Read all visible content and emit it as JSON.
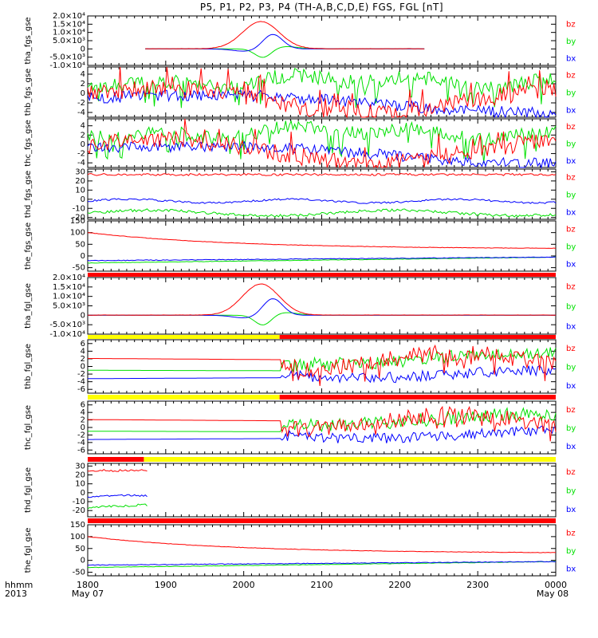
{
  "title": "P5, P1, P2, P3, P4 (TH-A,B,C,D,E) FGS, FGL [nT]",
  "footer": {
    "row1_label": "hhmm",
    "row2_label": "2013",
    "start_date": "May 07",
    "end_date": "May 08"
  },
  "colors": {
    "bx": "#0000ff",
    "by": "#00e000",
    "bz": "#ff0000",
    "bar_red": "#ff0000",
    "bar_yellow": "#ffff00",
    "bar_black": "#000000"
  },
  "chart_data": {
    "type": "line",
    "x_ticks": [
      "1800",
      "1900",
      "2000",
      "2100",
      "2200",
      "2300",
      "0000"
    ],
    "x_range": [
      "1800",
      "0000"
    ],
    "legend": [
      "bz",
      "by",
      "bx"
    ],
    "panels": [
      {
        "id": "tha_fgs_gse",
        "ylabel": "tha_fgs_gse",
        "ylim": [
          -10000,
          20000
        ],
        "yticks": [
          {
            "v": 20000,
            "t": "2.0×10⁴"
          },
          {
            "v": 15000,
            "t": "1.5×10⁴"
          },
          {
            "v": 10000,
            "t": "1.0×10⁴"
          },
          {
            "v": 5000,
            "t": "5.0×10³"
          },
          {
            "v": 0,
            "t": "0"
          },
          {
            "v": -5000,
            "t": "-5.0×10³"
          },
          {
            "v": -10000,
            "t": "-1.0×10⁴"
          }
        ],
        "coverage": [
          [
            0.12,
            0.72
          ]
        ],
        "shape": "spike"
      },
      {
        "id": "thb_fgs_gse",
        "ylabel": "thb_fgs_gse",
        "ylim": [
          -5,
          5.5
        ],
        "yticks": [
          {
            "v": 4,
            "t": "4"
          },
          {
            "v": 2,
            "t": "2"
          },
          {
            "v": 0,
            "t": "0"
          },
          {
            "v": -2,
            "t": "-2"
          },
          {
            "v": -4,
            "t": "-4"
          }
        ],
        "coverage": [
          [
            0,
            1
          ]
        ],
        "shape": "noisy"
      },
      {
        "id": "thc_fgs_gse",
        "ylabel": "thc_fgs_gse",
        "ylim": [
          -5,
          5.5
        ],
        "yticks": [
          {
            "v": 4,
            "t": "4"
          },
          {
            "v": 2,
            "t": "2"
          },
          {
            "v": 0,
            "t": "0"
          },
          {
            "v": -2,
            "t": "-2"
          },
          {
            "v": -4,
            "t": "-4"
          }
        ],
        "coverage": [
          [
            0,
            1
          ]
        ],
        "shape": "noisy"
      },
      {
        "id": "thd_fgs_gse",
        "ylabel": "thd_fgs_gse",
        "ylim": [
          -22,
          33
        ],
        "yticks": [
          {
            "v": 30,
            "t": "30"
          },
          {
            "v": 20,
            "t": "20"
          },
          {
            "v": 10,
            "t": "10"
          },
          {
            "v": 0,
            "t": "0"
          },
          {
            "v": -10,
            "t": "-10"
          },
          {
            "v": -20,
            "t": "-20"
          }
        ],
        "coverage": [
          [
            0,
            1
          ]
        ],
        "shape": "flat",
        "levels": {
          "bz": 27,
          "by": -15,
          "bx": -2
        }
      },
      {
        "id": "the_fgs_gse",
        "ylabel": "the_fgs_gse",
        "ylim": [
          -65,
          150
        ],
        "yticks": [
          {
            "v": 150,
            "t": "150"
          },
          {
            "v": 100,
            "t": "100"
          },
          {
            "v": 50,
            "t": "50"
          },
          {
            "v": 0,
            "t": "0"
          },
          {
            "v": -50,
            "t": "-50"
          }
        ],
        "coverage": [
          [
            0,
            1
          ]
        ],
        "shape": "decay"
      },
      {
        "id": "tha_fgl_gse",
        "ylabel": "tha_fgl_gse",
        "ylim": [
          -10000,
          20000
        ],
        "yticks": [
          {
            "v": 20000,
            "t": "2.0×10⁴"
          },
          {
            "v": 15000,
            "t": "1.5×10⁴"
          },
          {
            "v": 10000,
            "t": "1.0×10⁴"
          },
          {
            "v": 5000,
            "t": "5.0×10³"
          },
          {
            "v": 0,
            "t": "0"
          },
          {
            "v": -5000,
            "t": "-5.0×10³"
          },
          {
            "v": -10000,
            "t": "-1.0×10⁴"
          }
        ],
        "coverage": [
          [
            0,
            1
          ]
        ],
        "shape": "spike"
      },
      {
        "id": "thb_fgl_gse",
        "ylabel": "thb_fgl_gse",
        "ylim": [
          -7,
          7
        ],
        "yticks": [
          {
            "v": 6,
            "t": "6"
          },
          {
            "v": 4,
            "t": "4"
          },
          {
            "v": 2,
            "t": "2"
          },
          {
            "v": 0,
            "t": "0"
          },
          {
            "v": -2,
            "t": "-2"
          },
          {
            "v": -4,
            "t": "-4"
          },
          {
            "v": -6,
            "t": "-6"
          }
        ],
        "coverage": [
          [
            0,
            1
          ]
        ],
        "shape": "step",
        "step_at": 0.415
      },
      {
        "id": "thc_fgl_gse",
        "ylabel": "thc_fgl_gse",
        "ylim": [
          -7,
          7
        ],
        "yticks": [
          {
            "v": 6,
            "t": "6"
          },
          {
            "v": 4,
            "t": "4"
          },
          {
            "v": 2,
            "t": "2"
          },
          {
            "v": 0,
            "t": "0"
          },
          {
            "v": -2,
            "t": "-2"
          },
          {
            "v": -4,
            "t": "-4"
          },
          {
            "v": -6,
            "t": "-6"
          }
        ],
        "coverage": [
          [
            0,
            1
          ]
        ],
        "shape": "step",
        "step_at": 0.415
      },
      {
        "id": "thd_fgl_gse",
        "ylabel": "thd_fgl_gse",
        "ylim": [
          -27,
          33
        ],
        "yticks": [
          {
            "v": 30,
            "t": "30"
          },
          {
            "v": 20,
            "t": "20"
          },
          {
            "v": 10,
            "t": "10"
          },
          {
            "v": 0,
            "t": "0"
          },
          {
            "v": -10,
            "t": "-10"
          },
          {
            "v": -20,
            "t": "-20"
          }
        ],
        "coverage": [
          [
            0,
            0.13
          ]
        ],
        "shape": "short",
        "levels": {
          "bz": 25,
          "by": -17,
          "bx": -5
        }
      },
      {
        "id": "the_fgl_gse",
        "ylabel": "the_fgl_gse",
        "ylim": [
          -65,
          150
        ],
        "yticks": [
          {
            "v": 150,
            "t": "150"
          },
          {
            "v": 100,
            "t": "100"
          },
          {
            "v": 50,
            "t": "50"
          },
          {
            "v": 0,
            "t": "0"
          },
          {
            "v": -50,
            "t": "-50"
          }
        ],
        "coverage": [
          [
            0,
            1
          ]
        ],
        "shape": "decay"
      }
    ],
    "status_bars": [
      {
        "after_panel": 4,
        "segments": [
          {
            "from": 0,
            "to": 1,
            "color": "bar_red"
          }
        ]
      },
      {
        "after_panel": 5,
        "segments": [
          {
            "from": 0,
            "to": 0.41,
            "color": "bar_yellow"
          },
          {
            "from": 0.41,
            "to": 1,
            "color": "bar_red"
          }
        ]
      },
      {
        "after_panel": 6,
        "segments": [
          {
            "from": 0,
            "to": 0.41,
            "color": "bar_yellow"
          },
          {
            "from": 0.41,
            "to": 1,
            "color": "bar_red"
          }
        ]
      },
      {
        "after_panel": 7,
        "segments": [
          {
            "from": 0,
            "to": 0.12,
            "color": "bar_red"
          },
          {
            "from": 0.12,
            "to": 1,
            "color": "bar_yellow"
          }
        ]
      },
      {
        "after_panel": 8,
        "segments": [
          {
            "from": 0,
            "to": 1,
            "color": "bar_red"
          }
        ]
      }
    ]
  }
}
